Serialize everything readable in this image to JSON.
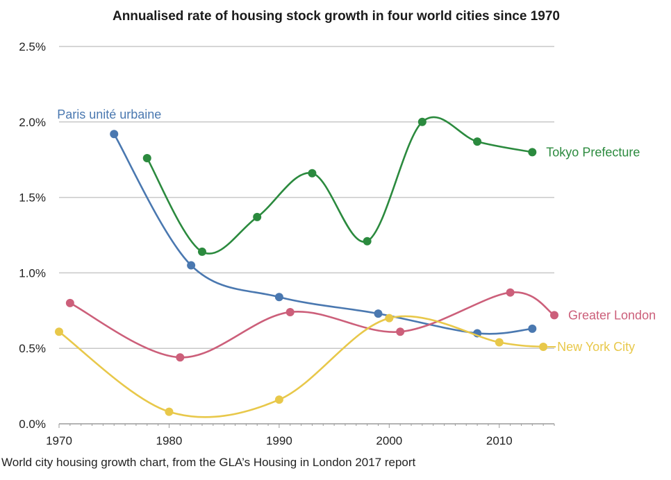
{
  "caption": "World city housing growth chart, from the GLA’s Housing in London 2017 report",
  "chart_data": {
    "type": "line",
    "title": "Annualised rate of housing stock growth in four world cities since 1970",
    "xlabel": "",
    "ylabel": "",
    "xlim": [
      1970,
      2015
    ],
    "ylim": [
      0,
      2.5
    ],
    "x_ticks": [
      "1970",
      "1980",
      "1990",
      "2000",
      "2010"
    ],
    "x_tick_values": [
      1970,
      1980,
      1990,
      2000,
      2010
    ],
    "y_ticks": [
      "0.0%",
      "0.5%",
      "1.0%",
      "1.5%",
      "2.0%",
      "2.5%"
    ],
    "y_tick_values": [
      0,
      0.5,
      1,
      1.5,
      2,
      2.5
    ],
    "grid": "horizontal",
    "series": [
      {
        "name": "Paris unité urbaine",
        "color": "#4a78b0",
        "label_position": "start",
        "points": [
          [
            1975,
            1.92
          ],
          [
            1982,
            1.05
          ],
          [
            1990,
            0.84
          ],
          [
            1999,
            0.73
          ],
          [
            2008,
            0.6
          ],
          [
            2013,
            0.63
          ]
        ]
      },
      {
        "name": "Tokyo Prefecture",
        "color": "#2b8a3e",
        "label_position": "end",
        "points": [
          [
            1978,
            1.76
          ],
          [
            1983,
            1.14
          ],
          [
            1988,
            1.37
          ],
          [
            1993,
            1.66
          ],
          [
            1998,
            1.21
          ],
          [
            2003,
            2.0
          ],
          [
            2008,
            1.87
          ],
          [
            2013,
            1.8
          ]
        ]
      },
      {
        "name": "Greater London",
        "color": "#cc5f7a",
        "label_position": "end",
        "points": [
          [
            1971,
            0.8
          ],
          [
            1981,
            0.44
          ],
          [
            1991,
            0.74
          ],
          [
            2001,
            0.61
          ],
          [
            2011,
            0.87
          ],
          [
            2015,
            0.72
          ]
        ]
      },
      {
        "name": "New York City",
        "color": "#e8c84a",
        "label_position": "end",
        "points": [
          [
            1970,
            0.61
          ],
          [
            1980,
            0.08
          ],
          [
            1990,
            0.16
          ],
          [
            2000,
            0.7
          ],
          [
            2010,
            0.54
          ],
          [
            2014,
            0.51
          ]
        ]
      }
    ]
  }
}
